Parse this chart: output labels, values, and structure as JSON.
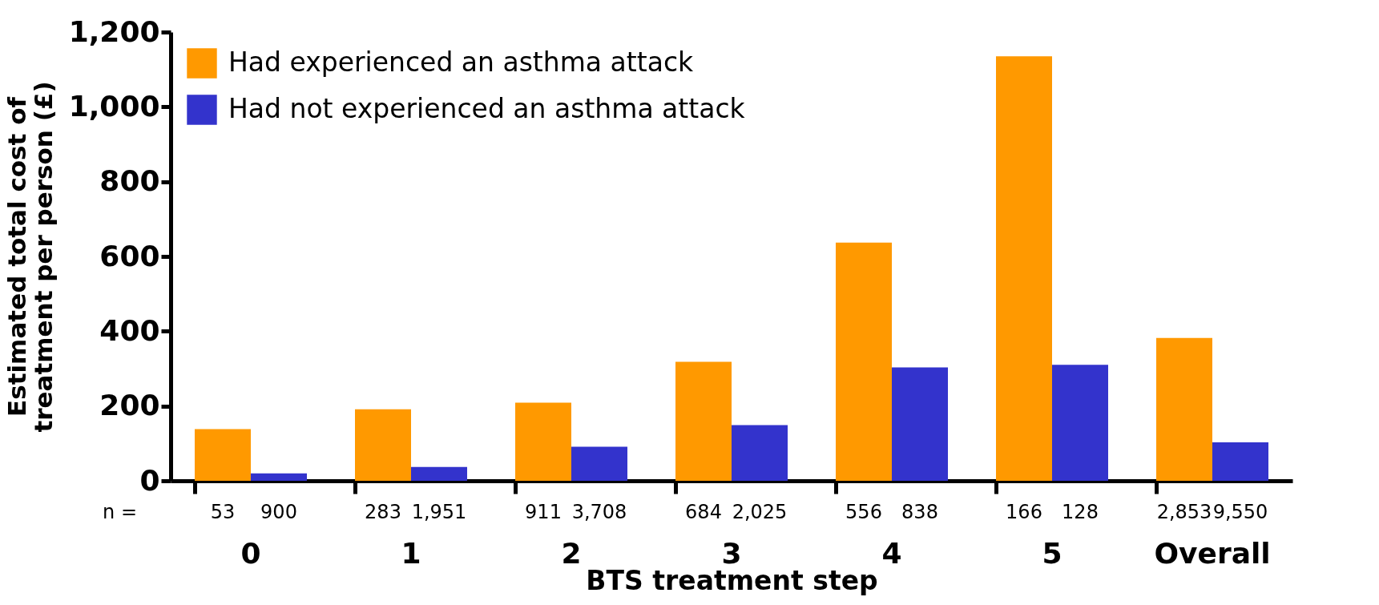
{
  "chart_data": {
    "type": "bar",
    "xlabel": "BTS treatment step",
    "ylabel": "Estimated total cost of treatment per person (£)",
    "categories": [
      "0",
      "1",
      "2",
      "3",
      "4",
      "5",
      "Overall"
    ],
    "series": [
      {
        "name": "Had experienced an asthma attack",
        "color": "#ff9900",
        "values": [
          138,
          191,
          209,
          318,
          637,
          1135,
          382
        ]
      },
      {
        "name": "Had not experienced an asthma attack",
        "color": "#3333cc",
        "values": [
          20,
          37,
          91,
          149,
          303,
          310,
          103
        ]
      }
    ],
    "ylim": [
      0,
      1200
    ],
    "yticks": [
      0,
      {
        "value": 200,
        "label": "200"
      },
      {
        "value": 400,
        "label": "400"
      },
      {
        "value": 600,
        "label": "600"
      },
      {
        "value": 800,
        "label": "800"
      },
      {
        "value": 1000,
        "label": "1,000"
      },
      {
        "value": 1200,
        "label": "1,200"
      }
    ],
    "grid": false,
    "legend": "top left",
    "annotations": [
      "n =",
      "53",
      "900",
      "283",
      "1,951",
      "911",
      "3,708",
      "684",
      "2,025",
      "556",
      "838",
      "166",
      "128",
      "2,853",
      "9,550"
    ]
  }
}
